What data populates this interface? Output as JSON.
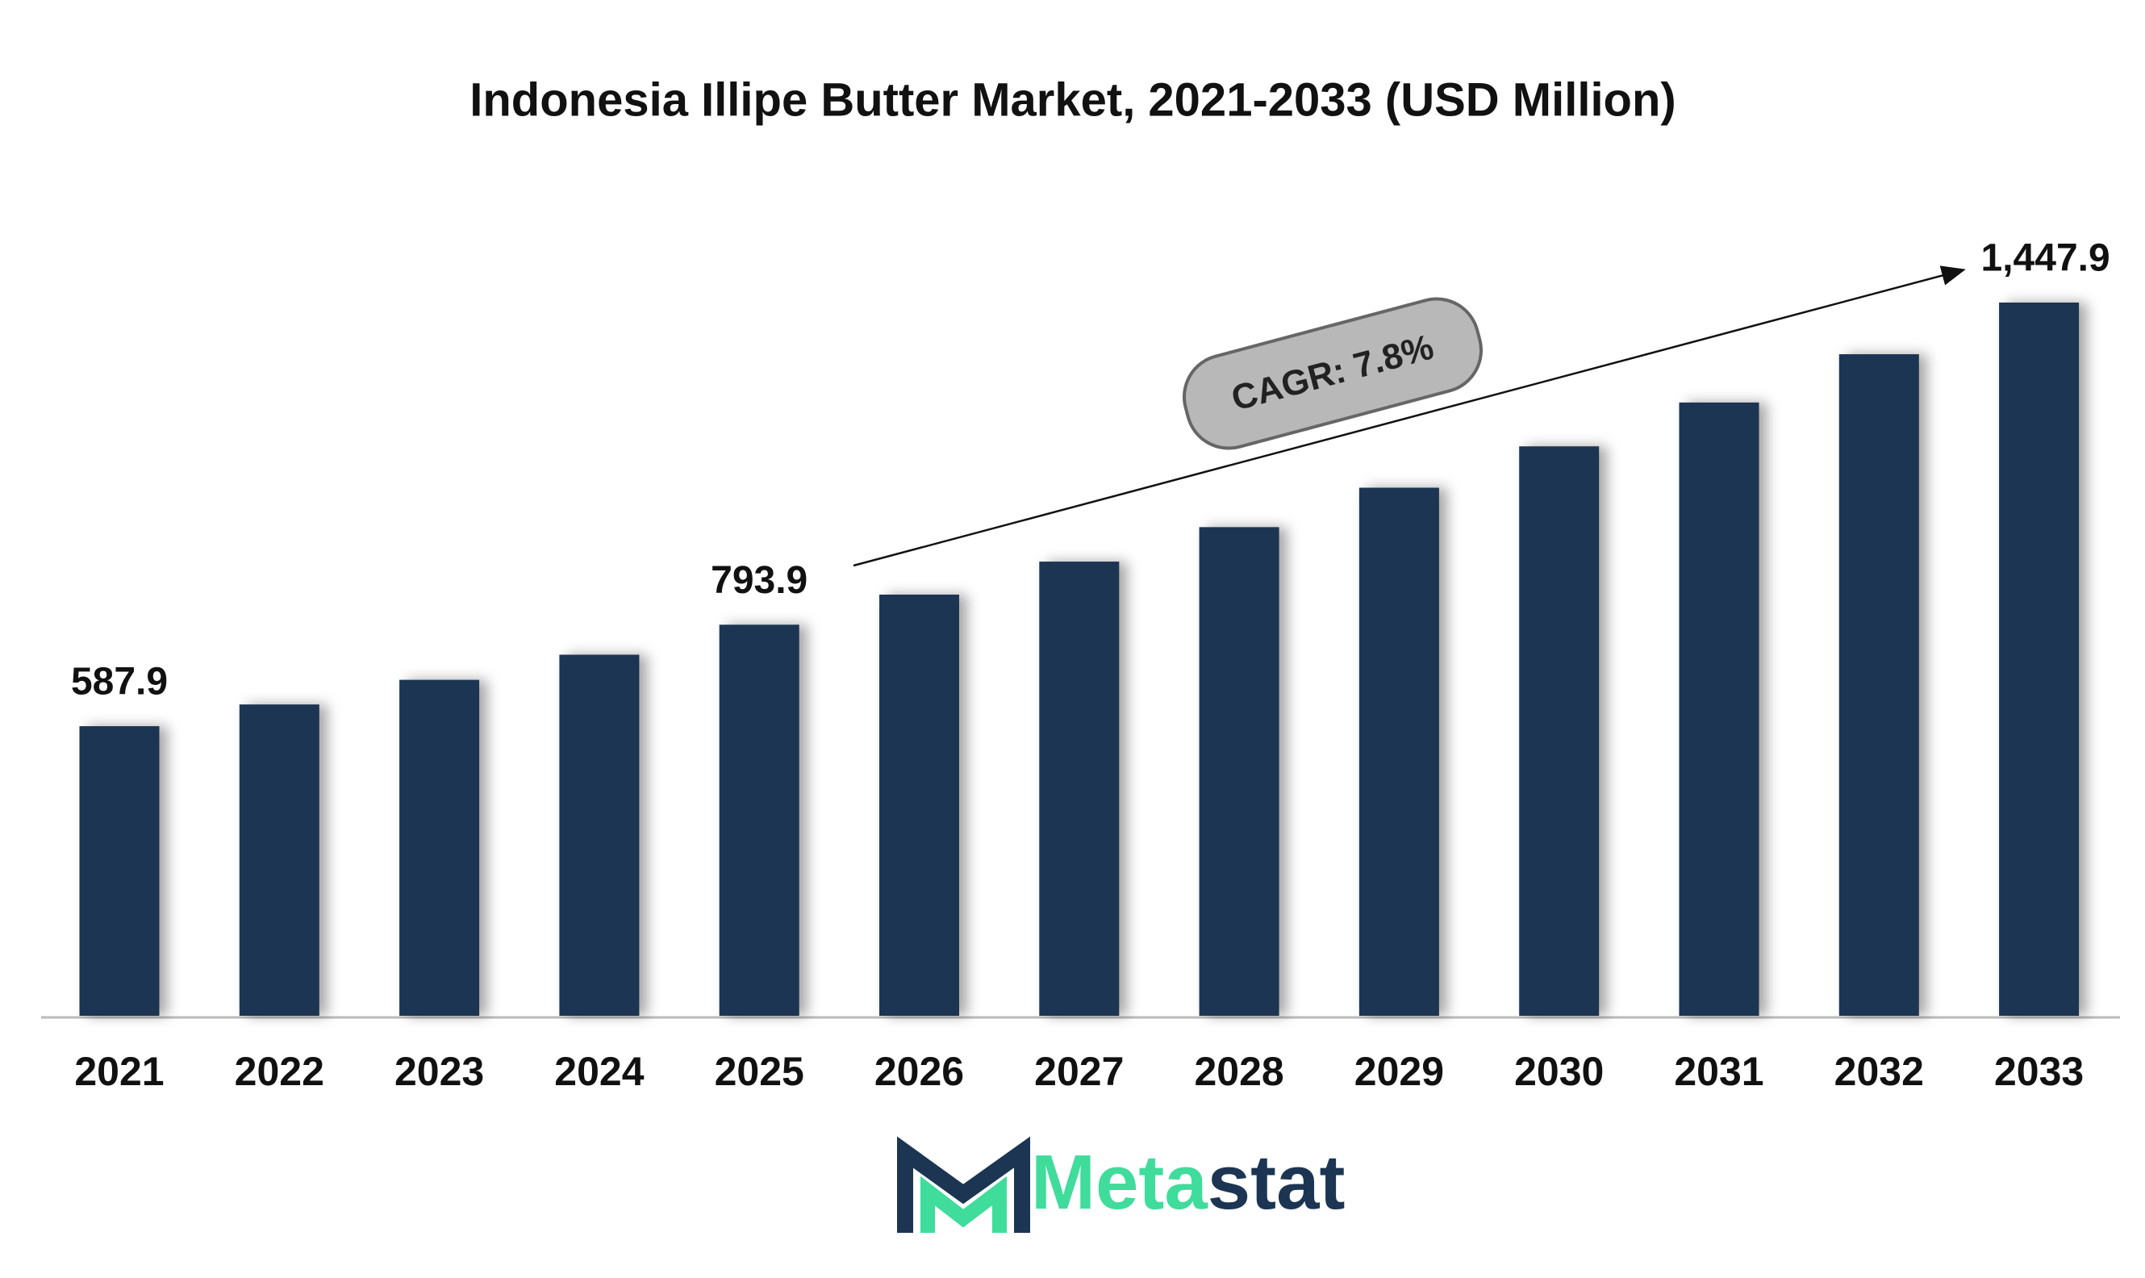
{
  "chart_data": {
    "type": "bar",
    "title": "Indonesia Illipe Butter Market, 2021-2033 (USD Million)",
    "categories": [
      "2021",
      "2022",
      "2023",
      "2024",
      "2025",
      "2026",
      "2027",
      "2028",
      "2029",
      "2030",
      "2031",
      "2032",
      "2033"
    ],
    "values": [
      587.9,
      632,
      682,
      733,
      793.9,
      855,
      922,
      992,
      1072,
      1156,
      1245,
      1343,
      1447.9
    ],
    "value_labels": [
      "587.9",
      null,
      null,
      null,
      "793.9",
      null,
      null,
      null,
      null,
      null,
      null,
      null,
      "1,447.9"
    ],
    "color": "#1b3553",
    "annotation": "CAGR: 7.8%"
  },
  "logo": [
    "Meta",
    "stat"
  ]
}
